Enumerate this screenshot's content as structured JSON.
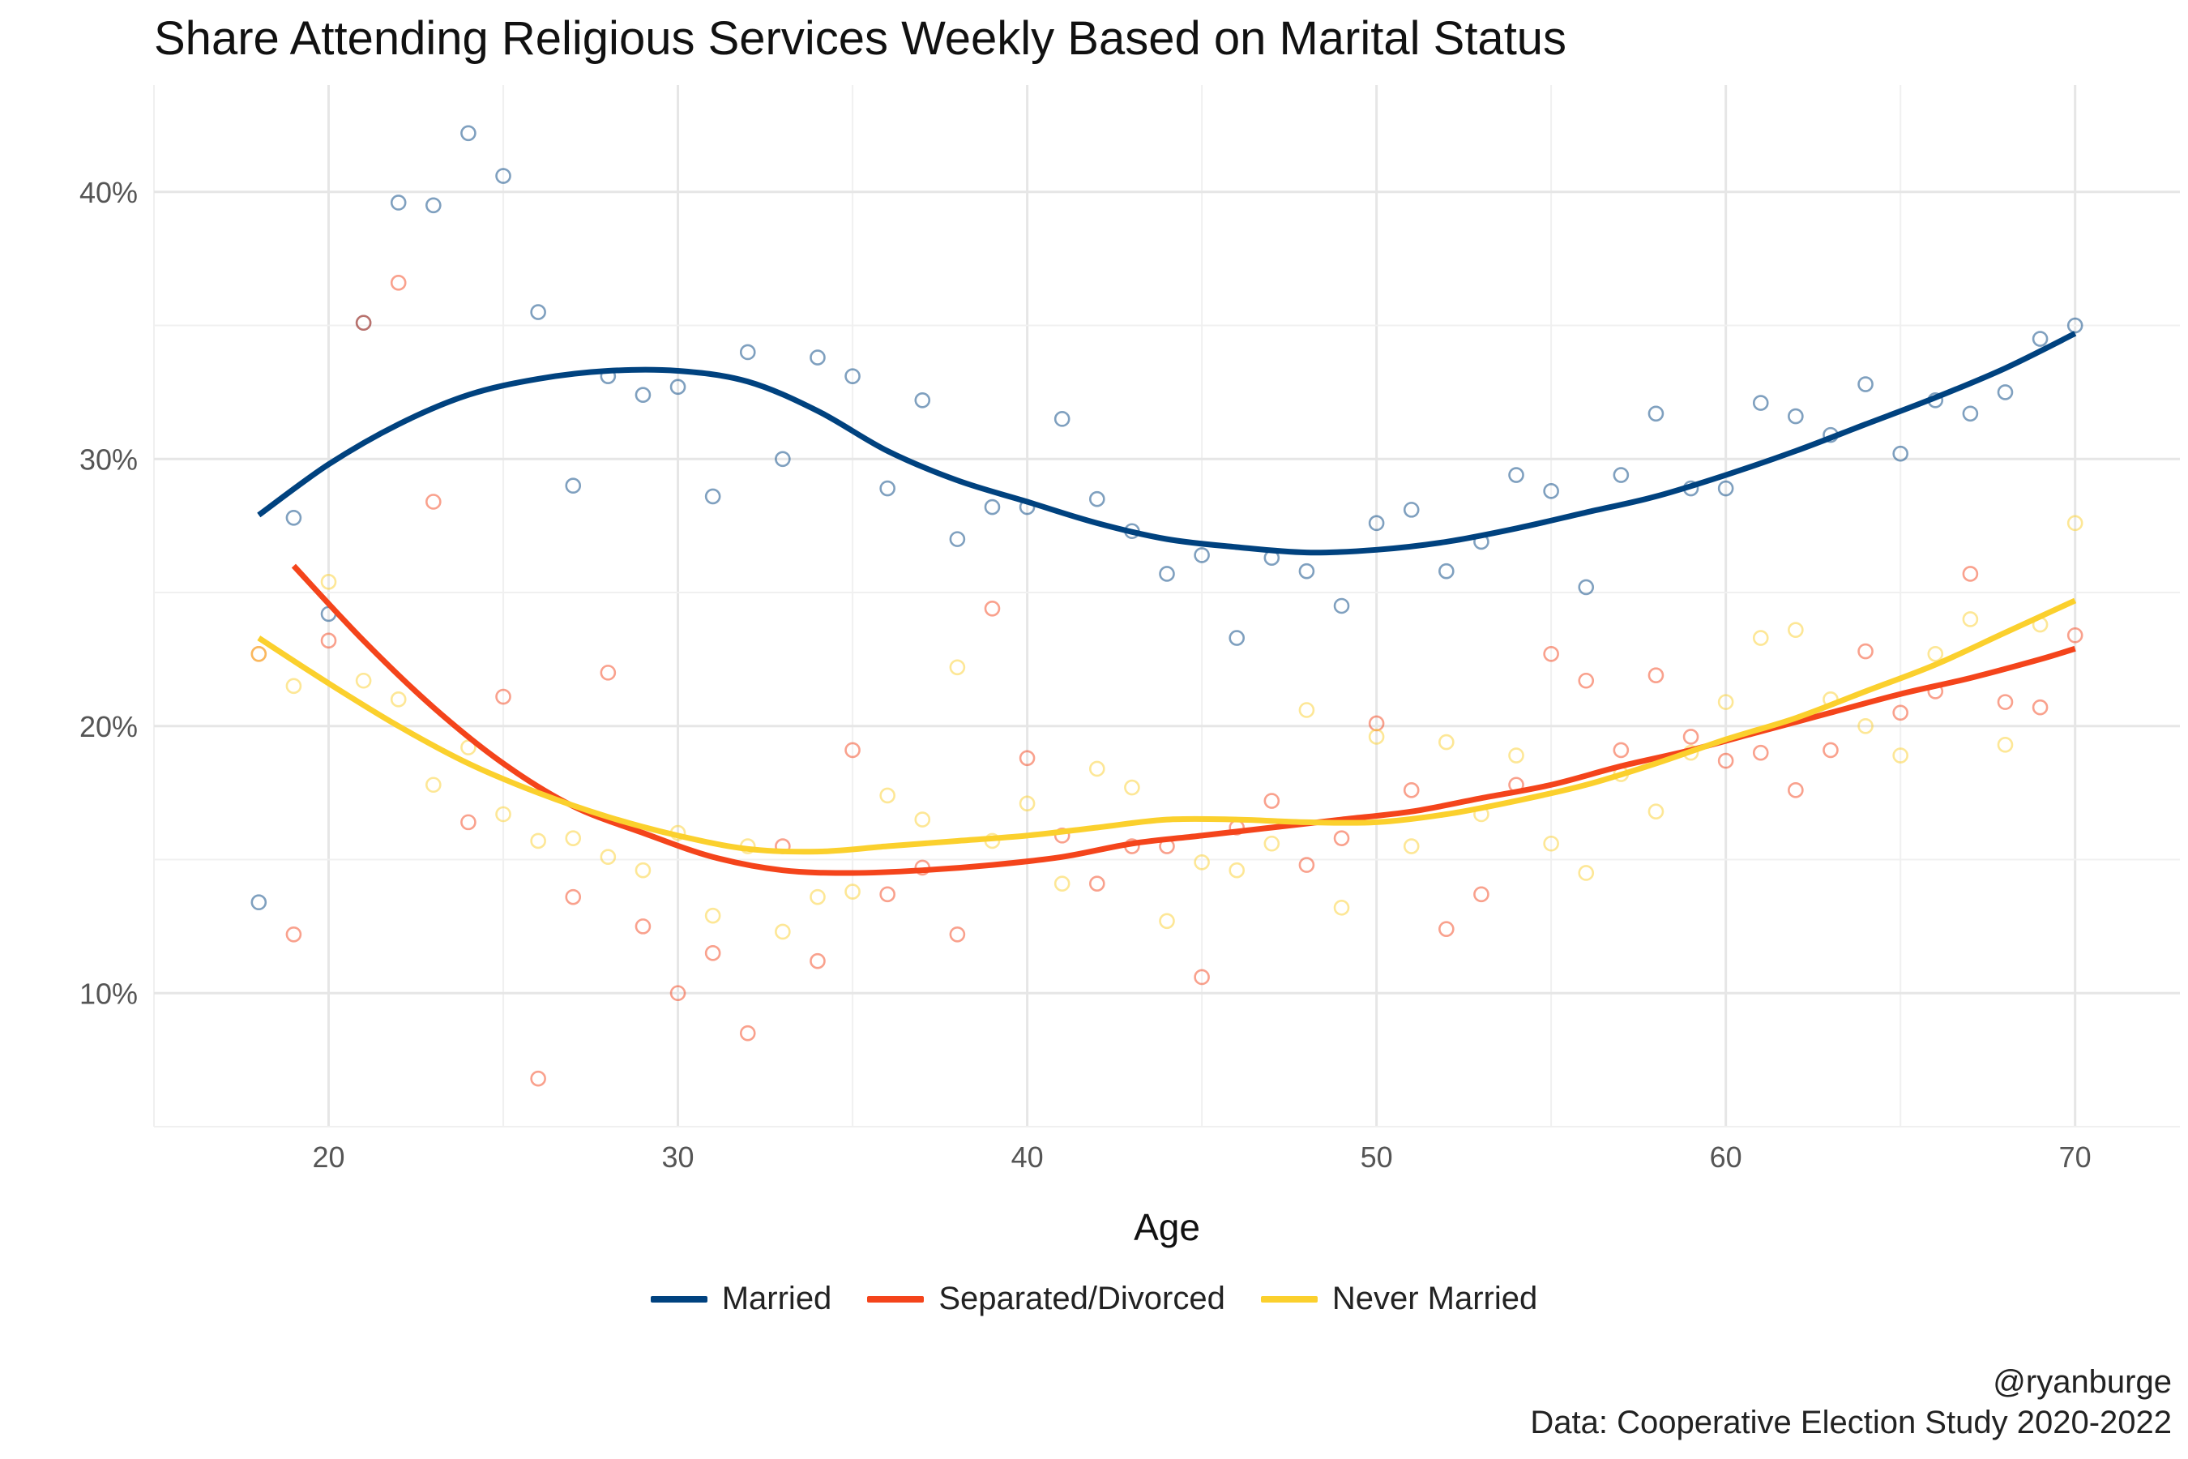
{
  "chart_data": {
    "type": "scatter",
    "title": "Share Attending Religious Services Weekly Based on Marital Status",
    "xlabel": "Age",
    "ylabel": "",
    "xlim": [
      15,
      73
    ],
    "ylim": [
      0.05,
      0.44
    ],
    "x_ticks": [
      20,
      30,
      40,
      50,
      60,
      70
    ],
    "x_tick_labels": [
      "20",
      "30",
      "40",
      "50",
      "60",
      "70"
    ],
    "y_ticks": [
      0.1,
      0.2,
      0.3,
      0.4
    ],
    "y_tick_labels": [
      "10%",
      "20%",
      "30%",
      "40%"
    ],
    "grid": true,
    "legend_position": "bottom",
    "series": [
      {
        "name": "Married",
        "color": "#00427f",
        "x": [
          18,
          19,
          20,
          21,
          22,
          23,
          24,
          25,
          26,
          27,
          28,
          29,
          30,
          31,
          32,
          33,
          34,
          35,
          36,
          37,
          38,
          39,
          40,
          41,
          42,
          43,
          44,
          45,
          46,
          47,
          48,
          49,
          50,
          51,
          52,
          53,
          54,
          55,
          56,
          57,
          58,
          59,
          60,
          61,
          62,
          63,
          64,
          65,
          66,
          67,
          68,
          69,
          70
        ],
        "y": [
          0.134,
          0.278,
          0.242,
          0.351,
          0.396,
          0.395,
          0.422,
          0.406,
          0.355,
          0.29,
          0.331,
          0.324,
          0.327,
          0.286,
          0.34,
          0.3,
          0.338,
          0.331,
          0.289,
          0.322,
          0.27,
          0.282,
          0.282,
          0.315,
          0.285,
          0.273,
          0.257,
          0.264,
          0.233,
          0.263,
          0.258,
          0.245,
          0.276,
          0.281,
          0.258,
          0.269,
          0.294,
          0.288,
          0.252,
          0.294,
          0.317,
          0.289,
          0.289,
          0.321,
          0.316,
          0.309,
          0.328,
          0.302,
          0.322,
          0.317,
          0.325,
          0.345,
          0.35
        ],
        "trend": [
          [
            18,
            0.279
          ],
          [
            20,
            0.298
          ],
          [
            22,
            0.313
          ],
          [
            24,
            0.324
          ],
          [
            26,
            0.33
          ],
          [
            28,
            0.333
          ],
          [
            30,
            0.333
          ],
          [
            32,
            0.329
          ],
          [
            34,
            0.318
          ],
          [
            36,
            0.303
          ],
          [
            38,
            0.292
          ],
          [
            40,
            0.284
          ],
          [
            42,
            0.276
          ],
          [
            44,
            0.27
          ],
          [
            46,
            0.267
          ],
          [
            48,
            0.265
          ],
          [
            50,
            0.266
          ],
          [
            52,
            0.269
          ],
          [
            54,
            0.274
          ],
          [
            56,
            0.28
          ],
          [
            58,
            0.286
          ],
          [
            60,
            0.294
          ],
          [
            62,
            0.303
          ],
          [
            64,
            0.313
          ],
          [
            66,
            0.323
          ],
          [
            68,
            0.334
          ],
          [
            70,
            0.347
          ]
        ]
      },
      {
        "name": "Separated/Divorced",
        "color": "#f4441b",
        "x": [
          18,
          19,
          20,
          21,
          22,
          23,
          24,
          25,
          26,
          27,
          28,
          29,
          30,
          31,
          32,
          33,
          34,
          35,
          36,
          37,
          38,
          39,
          40,
          41,
          42,
          43,
          44,
          45,
          46,
          47,
          48,
          49,
          50,
          51,
          52,
          53,
          54,
          55,
          56,
          57,
          58,
          59,
          60,
          61,
          62,
          63,
          64,
          65,
          66,
          67,
          68,
          69,
          70
        ],
        "y": [
          0.227,
          0.122,
          0.232,
          0.351,
          0.366,
          0.284,
          0.164,
          0.211,
          0.068,
          0.136,
          0.22,
          0.125,
          0.1,
          0.115,
          0.085,
          0.155,
          0.112,
          0.191,
          0.137,
          0.147,
          0.122,
          0.244,
          0.188,
          0.159,
          0.141,
          0.155,
          0.155,
          0.106,
          0.162,
          0.172,
          0.148,
          0.158,
          0.201,
          0.176,
          0.124,
          0.137,
          0.178,
          0.227,
          0.217,
          0.191,
          0.219,
          0.196,
          0.187,
          0.19,
          0.176,
          0.191,
          0.228,
          0.205,
          0.213,
          0.257,
          0.209,
          0.207,
          0.234
        ],
        "trend": [
          [
            19,
            0.26
          ],
          [
            21,
            0.232
          ],
          [
            23,
            0.207
          ],
          [
            25,
            0.186
          ],
          [
            27,
            0.17
          ],
          [
            29,
            0.16
          ],
          [
            31,
            0.151
          ],
          [
            33,
            0.146
          ],
          [
            35,
            0.145
          ],
          [
            37,
            0.146
          ],
          [
            39,
            0.148
          ],
          [
            41,
            0.151
          ],
          [
            43,
            0.156
          ],
          [
            45,
            0.159
          ],
          [
            47,
            0.162
          ],
          [
            49,
            0.165
          ],
          [
            51,
            0.168
          ],
          [
            53,
            0.173
          ],
          [
            55,
            0.178
          ],
          [
            57,
            0.185
          ],
          [
            59,
            0.191
          ],
          [
            61,
            0.198
          ],
          [
            63,
            0.205
          ],
          [
            65,
            0.212
          ],
          [
            67,
            0.218
          ],
          [
            69,
            0.225
          ],
          [
            70,
            0.229
          ]
        ]
      },
      {
        "name": "Never Married",
        "color": "#fbd02d",
        "x": [
          18,
          19,
          20,
          21,
          22,
          23,
          24,
          25,
          26,
          27,
          28,
          29,
          30,
          31,
          32,
          33,
          34,
          35,
          36,
          37,
          38,
          39,
          40,
          41,
          42,
          43,
          44,
          45,
          46,
          47,
          48,
          49,
          50,
          51,
          52,
          53,
          54,
          55,
          56,
          57,
          58,
          59,
          60,
          61,
          62,
          63,
          64,
          65,
          66,
          67,
          68,
          69,
          70
        ],
        "y": [
          0.227,
          0.215,
          0.254,
          0.217,
          0.21,
          0.178,
          0.192,
          0.167,
          0.157,
          0.158,
          0.151,
          0.146,
          0.16,
          0.129,
          0.155,
          0.123,
          0.136,
          0.138,
          0.174,
          0.165,
          0.222,
          0.157,
          0.171,
          0.141,
          0.184,
          0.177,
          0.127,
          0.149,
          0.146,
          0.156,
          0.206,
          0.132,
          0.196,
          0.155,
          0.194,
          0.167,
          0.189,
          0.156,
          0.145,
          0.182,
          0.168,
          0.19,
          0.209,
          0.233,
          0.236,
          0.21,
          0.2,
          0.189,
          0.227,
          0.24,
          0.193,
          0.238,
          0.276
        ],
        "trend": [
          [
            18,
            0.233
          ],
          [
            20,
            0.216
          ],
          [
            22,
            0.2
          ],
          [
            24,
            0.186
          ],
          [
            26,
            0.175
          ],
          [
            28,
            0.166
          ],
          [
            30,
            0.159
          ],
          [
            32,
            0.154
          ],
          [
            34,
            0.153
          ],
          [
            36,
            0.155
          ],
          [
            38,
            0.157
          ],
          [
            40,
            0.159
          ],
          [
            42,
            0.162
          ],
          [
            44,
            0.165
          ],
          [
            46,
            0.165
          ],
          [
            48,
            0.164
          ],
          [
            50,
            0.164
          ],
          [
            52,
            0.167
          ],
          [
            54,
            0.172
          ],
          [
            56,
            0.178
          ],
          [
            58,
            0.186
          ],
          [
            60,
            0.195
          ],
          [
            62,
            0.203
          ],
          [
            64,
            0.213
          ],
          [
            66,
            0.223
          ],
          [
            68,
            0.235
          ],
          [
            70,
            0.247
          ]
        ]
      }
    ],
    "caption_lines": [
      "@ryanburge",
      "Data: Cooperative Election Study 2020-2022"
    ]
  }
}
